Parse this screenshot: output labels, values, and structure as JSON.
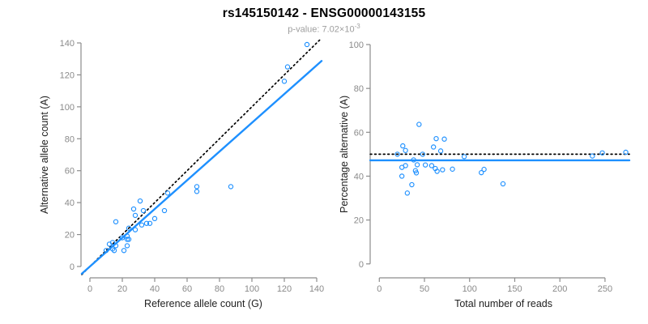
{
  "header": {
    "title": "rs145150142 - ENSG00000143155",
    "subtitle_prefix": "p-value: 7.02×10",
    "subtitle_exponent": "-3"
  },
  "colors": {
    "points": "#1E90FF",
    "fit_line": "#1E90FF",
    "identity_line": "#000000",
    "axis_line": "#8c8c8c",
    "tick_label": "#8a8a8a",
    "axis_title": "#222222",
    "subtitle": "#9e9e9e"
  },
  "chart_data": [
    {
      "id": "allele-counts",
      "type": "scatter",
      "xlabel": "Reference allele count (G)",
      "ylabel": "Alternative allele count (A)",
      "xlim": [
        0,
        140
      ],
      "ylim": [
        0,
        140
      ],
      "xticks": [
        0,
        20,
        40,
        60,
        80,
        100,
        120,
        140
      ],
      "yticks": [
        0,
        20,
        40,
        60,
        80,
        100,
        120,
        140
      ],
      "grid": false,
      "legend": "none",
      "points": [
        [
          134,
          139
        ],
        [
          122,
          125
        ],
        [
          120,
          116
        ],
        [
          87,
          50
        ],
        [
          66,
          50
        ],
        [
          66,
          47
        ],
        [
          48,
          46
        ],
        [
          46,
          35
        ],
        [
          31,
          41
        ],
        [
          27,
          36
        ],
        [
          33,
          35
        ],
        [
          28,
          32
        ],
        [
          35,
          27
        ],
        [
          37,
          27
        ],
        [
          40,
          30
        ],
        [
          16,
          28
        ],
        [
          32,
          26
        ],
        [
          24,
          24
        ],
        [
          28,
          23
        ],
        [
          20,
          18
        ],
        [
          23,
          19
        ],
        [
          23,
          17
        ],
        [
          24,
          17
        ],
        [
          12,
          14
        ],
        [
          14,
          15
        ],
        [
          16,
          13
        ],
        [
          14,
          11
        ],
        [
          15,
          10
        ],
        [
          10,
          10
        ],
        [
          21,
          10
        ],
        [
          23,
          13
        ]
      ],
      "lines": [
        {
          "name": "identity-line",
          "style": "dotted",
          "color": "#000000",
          "width": 1.7,
          "p1": [
            -5,
            -5
          ],
          "p2": [
            143,
            143
          ]
        },
        {
          "name": "fit-line",
          "style": "solid",
          "color": "#1E90FF",
          "width": 2.4,
          "p1": [
            -5,
            -4.5
          ],
          "p2": [
            143,
            128.7
          ]
        }
      ]
    },
    {
      "id": "percentage-alternative",
      "type": "scatter",
      "xlabel": "Total number of reads",
      "ylabel": "Percentage alternative (A)",
      "xlim": [
        0,
        275
      ],
      "ylim": [
        0,
        100
      ],
      "xticks": [
        0,
        50,
        100,
        150,
        200,
        250
      ],
      "yticks": [
        0,
        20,
        40,
        60,
        80,
        100
      ],
      "grid": false,
      "legend": "none",
      "points": [
        [
          273,
          50.9
        ],
        [
          247,
          50.6
        ],
        [
          236,
          49.2
        ],
        [
          137,
          36.5
        ],
        [
          116,
          43.1
        ],
        [
          113,
          41.6
        ],
        [
          94,
          48.9
        ],
        [
          81,
          43.2
        ],
        [
          72,
          56.9
        ],
        [
          63,
          57.1
        ],
        [
          68,
          51.5
        ],
        [
          60,
          53.3
        ],
        [
          62,
          43.5
        ],
        [
          64,
          42.2
        ],
        [
          70,
          42.9
        ],
        [
          44,
          63.6
        ],
        [
          58,
          44.8
        ],
        [
          48,
          50.0
        ],
        [
          51,
          45.1
        ],
        [
          38,
          47.4
        ],
        [
          42,
          45.2
        ],
        [
          40,
          42.5
        ],
        [
          41,
          41.5
        ],
        [
          26,
          53.8
        ],
        [
          29,
          51.7
        ],
        [
          29,
          44.8
        ],
        [
          25,
          44.0
        ],
        [
          25,
          40.0
        ],
        [
          20,
          50.0
        ],
        [
          31,
          32.3
        ],
        [
          36,
          36.1
        ]
      ],
      "lines": [
        {
          "name": "expected-50pct-line",
          "style": "dotted",
          "color": "#000000",
          "width": 1.7,
          "p1": [
            -10,
            50
          ],
          "p2": [
            277,
            50
          ]
        },
        {
          "name": "fit-percentage-line",
          "style": "solid",
          "color": "#1E90FF",
          "width": 2.4,
          "p1": [
            -10,
            47.2
          ],
          "p2": [
            277,
            47.2
          ]
        }
      ]
    }
  ]
}
